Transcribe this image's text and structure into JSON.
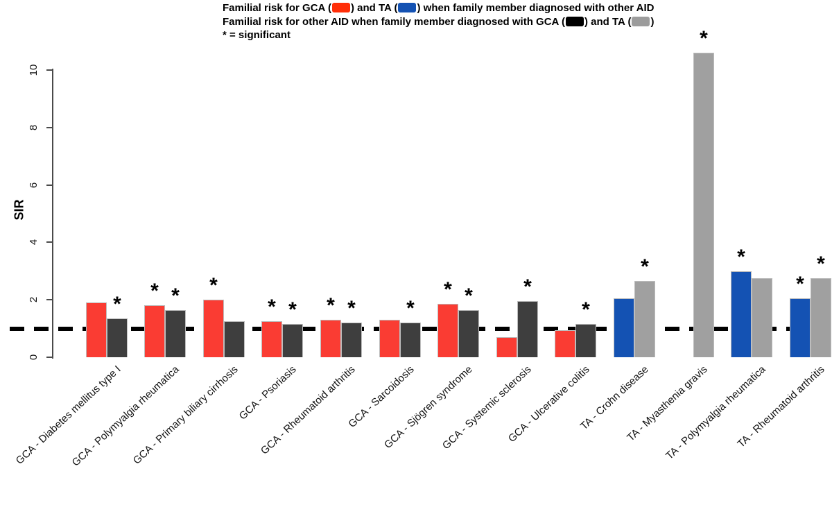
{
  "legend": {
    "line1_pre": "Familial risk for GCA (",
    "line1_mid": ") and TA (",
    "line1_post": ") when family member diagnosed with other AID",
    "line2_pre": "Familial risk for other AID when family member diagnosed with GCA (",
    "line2_mid": ") and TA (",
    "line2_post": ")",
    "line3": "* = significant"
  },
  "colors": {
    "gca_bar": "#FA3C33",
    "ta_bar": "#1452B3",
    "aid_gca_bar": "#3E3E3E",
    "aid_ta_bar": "#A0A0A0",
    "legend_gca_swatch": "#FF2E08",
    "legend_ta_swatch": "#1452B3",
    "legend_aid_gca_swatch": "#000000",
    "legend_aid_ta_swatch": "#9C9C9C",
    "reference_line": "#000000"
  },
  "chart_data": {
    "type": "bar",
    "title": "",
    "xlabel": "",
    "ylabel": "SIR",
    "ylim": [
      0,
      10
    ],
    "yticks": [
      0,
      2,
      4,
      6,
      8,
      10
    ],
    "grid": false,
    "legend_position": "top",
    "reference_line_y": 1,
    "significance_marker": "*",
    "series_legend": [
      {
        "key": "gca_bar",
        "label": "Familial risk for GCA when family member diagnosed with other AID"
      },
      {
        "key": "ta_bar",
        "label": "Familial risk for TA when family member diagnosed with other AID"
      },
      {
        "key": "aid_gca_bar",
        "label": "Familial risk for other AID when family member diagnosed with GCA"
      },
      {
        "key": "aid_ta_bar",
        "label": "Familial risk for other AID when family member diagnosed with TA"
      }
    ],
    "groups": [
      {
        "category": "GCA - Diabetes mellitus type I",
        "bars": [
          {
            "series": "gca_bar",
            "value": 1.9,
            "significant": false
          },
          {
            "series": "aid_gca_bar",
            "value": 1.35,
            "significant": true
          }
        ]
      },
      {
        "category": "GCA - Polymyalgia rheumatica",
        "bars": [
          {
            "series": "gca_bar",
            "value": 1.8,
            "significant": true
          },
          {
            "series": "aid_gca_bar",
            "value": 1.65,
            "significant": true
          }
        ]
      },
      {
        "category": "GCA - Primary biliary cirrhosis",
        "bars": [
          {
            "series": "gca_bar",
            "value": 2.0,
            "significant": true
          },
          {
            "series": "aid_gca_bar",
            "value": 1.25,
            "significant": false
          }
        ]
      },
      {
        "category": "GCA - Psoriasis",
        "bars": [
          {
            "series": "gca_bar",
            "value": 1.25,
            "significant": true
          },
          {
            "series": "aid_gca_bar",
            "value": 1.15,
            "significant": true
          }
        ]
      },
      {
        "category": "GCA - Rheumatoid arthritis",
        "bars": [
          {
            "series": "gca_bar",
            "value": 1.3,
            "significant": true
          },
          {
            "series": "aid_gca_bar",
            "value": 1.2,
            "significant": true
          }
        ]
      },
      {
        "category": "GCA - Sarcoidosis",
        "bars": [
          {
            "series": "gca_bar",
            "value": 1.3,
            "significant": false
          },
          {
            "series": "aid_gca_bar",
            "value": 1.2,
            "significant": true
          }
        ]
      },
      {
        "category": "GCA - Sjögren syndrome",
        "bars": [
          {
            "series": "gca_bar",
            "value": 1.85,
            "significant": true
          },
          {
            "series": "aid_gca_bar",
            "value": 1.65,
            "significant": true
          }
        ]
      },
      {
        "category": "GCA - Systemic sclerosis",
        "bars": [
          {
            "series": "gca_bar",
            "value": 0.7,
            "significant": false
          },
          {
            "series": "aid_gca_bar",
            "value": 1.95,
            "significant": true
          }
        ]
      },
      {
        "category": "GCA - Ulcerative colitis",
        "bars": [
          {
            "series": "gca_bar",
            "value": 0.95,
            "significant": false
          },
          {
            "series": "aid_gca_bar",
            "value": 1.15,
            "significant": true
          }
        ]
      },
      {
        "category": "TA - Crohn disease",
        "bars": [
          {
            "series": "ta_bar",
            "value": 2.05,
            "significant": false
          },
          {
            "series": "aid_ta_bar",
            "value": 2.65,
            "significant": true
          }
        ]
      },
      {
        "category": "TA - Myasthenia gravis",
        "bars": [
          {
            "series": "ta_bar",
            "value": null,
            "significant": false
          },
          {
            "series": "aid_ta_bar",
            "value": 10.6,
            "significant": true
          }
        ]
      },
      {
        "category": "TA - Polymyalgia rheumatica",
        "bars": [
          {
            "series": "ta_bar",
            "value": 3.0,
            "significant": true
          },
          {
            "series": "aid_ta_bar",
            "value": 2.75,
            "significant": false
          }
        ]
      },
      {
        "category": "TA - Rheumatoid arthritis",
        "bars": [
          {
            "series": "ta_bar",
            "value": 2.05,
            "significant": true
          },
          {
            "series": "aid_ta_bar",
            "value": 2.75,
            "significant": true
          }
        ]
      }
    ]
  }
}
